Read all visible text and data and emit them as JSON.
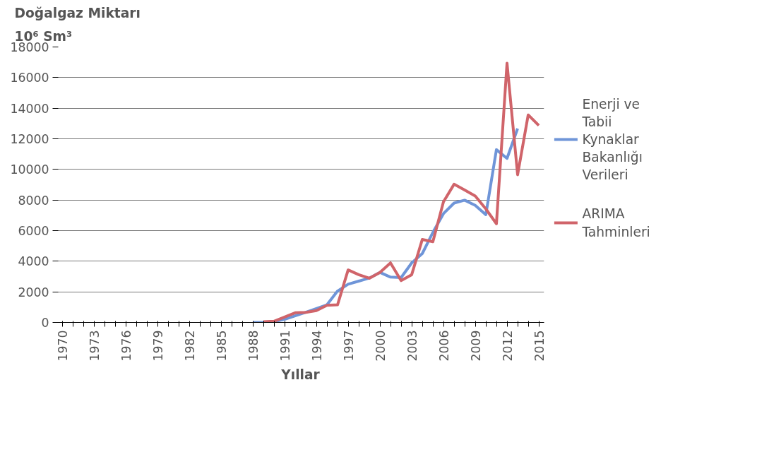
{
  "chart_data": {
    "type": "line",
    "title": "Doğalgaz Miktarı",
    "ylabel": "10⁶ Sm³",
    "xlabel": "Yıllar",
    "categories": [
      "1970",
      null,
      null,
      "1973",
      null,
      null,
      "1976",
      null,
      null,
      "1979",
      null,
      null,
      "1982",
      null,
      null,
      "1985",
      null,
      null,
      "1988",
      null,
      null,
      "1991",
      null,
      null,
      "1994",
      null,
      null,
      "1997",
      null,
      null,
      "2000",
      null,
      null,
      "2003",
      null,
      null,
      "2006",
      null,
      null,
      "2009",
      null,
      null,
      "2012",
      null,
      null,
      "2015"
    ],
    "ylim": [
      0,
      18000
    ],
    "yticks": [
      0,
      2000,
      4000,
      6000,
      8000,
      10000,
      12000,
      14000,
      16000,
      18000
    ],
    "grid": "y",
    "legend": "right",
    "line_style": "solid",
    "marker": "none",
    "series": [
      {
        "name": "Enerji ve Tabii Kynaklar Bakanlığı Verileri",
        "color": "#6f95d8",
        "values": [
          null,
          null,
          null,
          null,
          null,
          null,
          null,
          null,
          null,
          null,
          null,
          null,
          null,
          null,
          null,
          null,
          null,
          null,
          0,
          0,
          50,
          200,
          430,
          660,
          900,
          1150,
          2050,
          2500,
          2700,
          2900,
          3270,
          2960,
          2930,
          3890,
          4500,
          5880,
          7110,
          7800,
          7990,
          7650,
          7040,
          11290,
          10720,
          12670,
          null,
          null
        ]
      },
      {
        "name": "ARIMA Tahminleri",
        "color": "#d0646a",
        "values": [
          null,
          null,
          null,
          null,
          null,
          null,
          null,
          null,
          null,
          null,
          null,
          null,
          null,
          null,
          null,
          null,
          null,
          null,
          null,
          50,
          80,
          350,
          630,
          660,
          770,
          1120,
          1150,
          3430,
          3120,
          2890,
          3270,
          3890,
          2730,
          3120,
          5420,
          5270,
          7880,
          9030,
          8650,
          8260,
          7420,
          6450,
          16940,
          9650,
          13560,
          12870
        ]
      }
    ]
  }
}
